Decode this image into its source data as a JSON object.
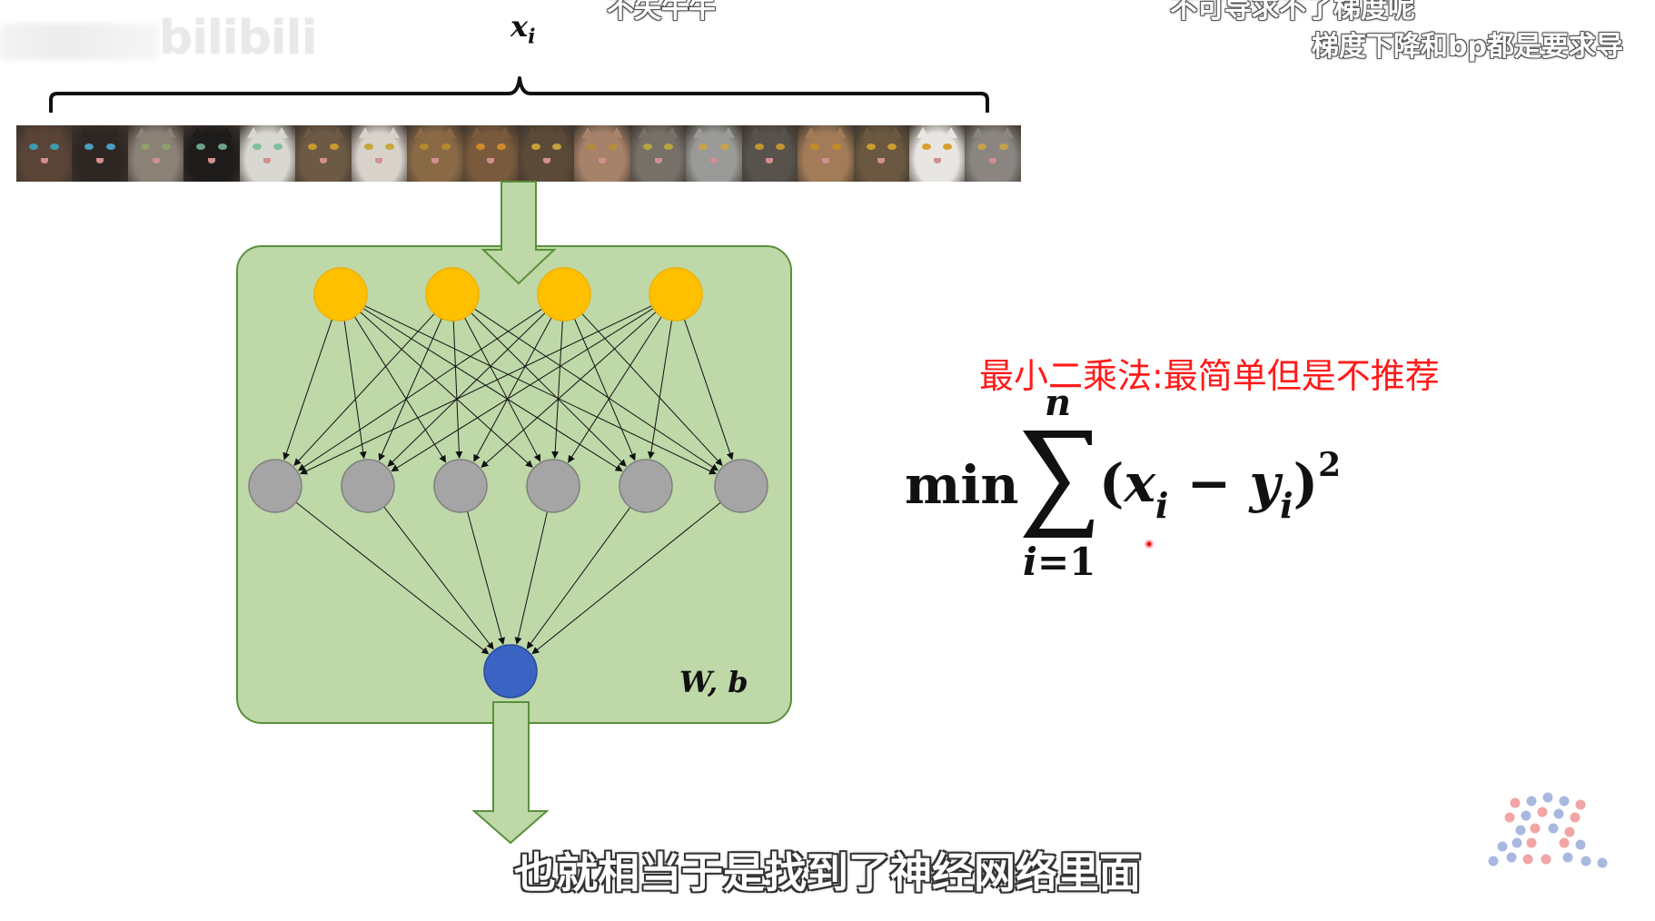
{
  "watermark": {
    "site_logo_text": "bilibili"
  },
  "danmaku": [
    "不失牛牛",
    "不可导求不了梯度呢",
    "梯度下降和bp都是要求导"
  ],
  "diagram": {
    "input_label": {
      "var": "x",
      "sub": "i"
    },
    "cat_count": 18,
    "model_label": "W, b",
    "hidden_layer_1_nodes": 4,
    "hidden_layer_2_nodes": 6,
    "output_nodes": 1,
    "colors": {
      "box_fill": "#bed8a8",
      "box_border": "#5b8f3c",
      "node_input": "#ffc000",
      "node_hidden": "#a5a5a5",
      "node_output": "#3a63c3",
      "arrow_fill": "#bed8a8"
    }
  },
  "formula": {
    "note": "最小二乘法:最简单但是不推荐",
    "min": "min",
    "sum_upper": "n",
    "sum_lower_var": "i",
    "sum_lower_eq": "=1",
    "open_paren": "(",
    "x": "x",
    "x_sub": "i",
    "minus": " − ",
    "y": "y",
    "y_sub": "i",
    "close_paren": ")",
    "power": "2",
    "note_color": "#ff1a1a"
  },
  "subtitle": "也就相当于是找到了神经网络里面"
}
